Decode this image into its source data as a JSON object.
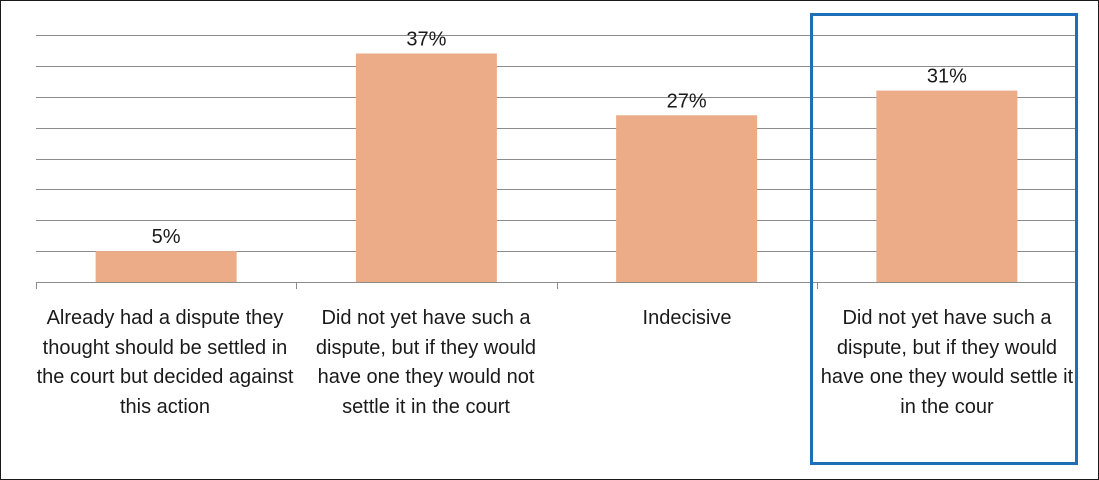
{
  "chart_data": {
    "type": "bar",
    "categories": [
      "Already had a dispute they thought should be settled in the court but decided against this action",
      "Did not yet have such a dispute, but if they would have one they would not settle it in the court",
      "Indecisive",
      "Did not yet have such a dispute, but if they would have one they would settle it in the cour"
    ],
    "values": [
      5,
      37,
      27,
      31
    ],
    "data_labels": [
      "5%",
      "37%",
      "27%",
      "31%"
    ],
    "ylim": [
      0,
      40
    ],
    "grid": true,
    "highlighted_category_index": 3,
    "colors": {
      "bar": "#ebac87",
      "grid": "#8c8c8c",
      "axis": "#8c8c8c",
      "highlight": "#1f6eb8",
      "text": "#1a1a1a"
    }
  }
}
